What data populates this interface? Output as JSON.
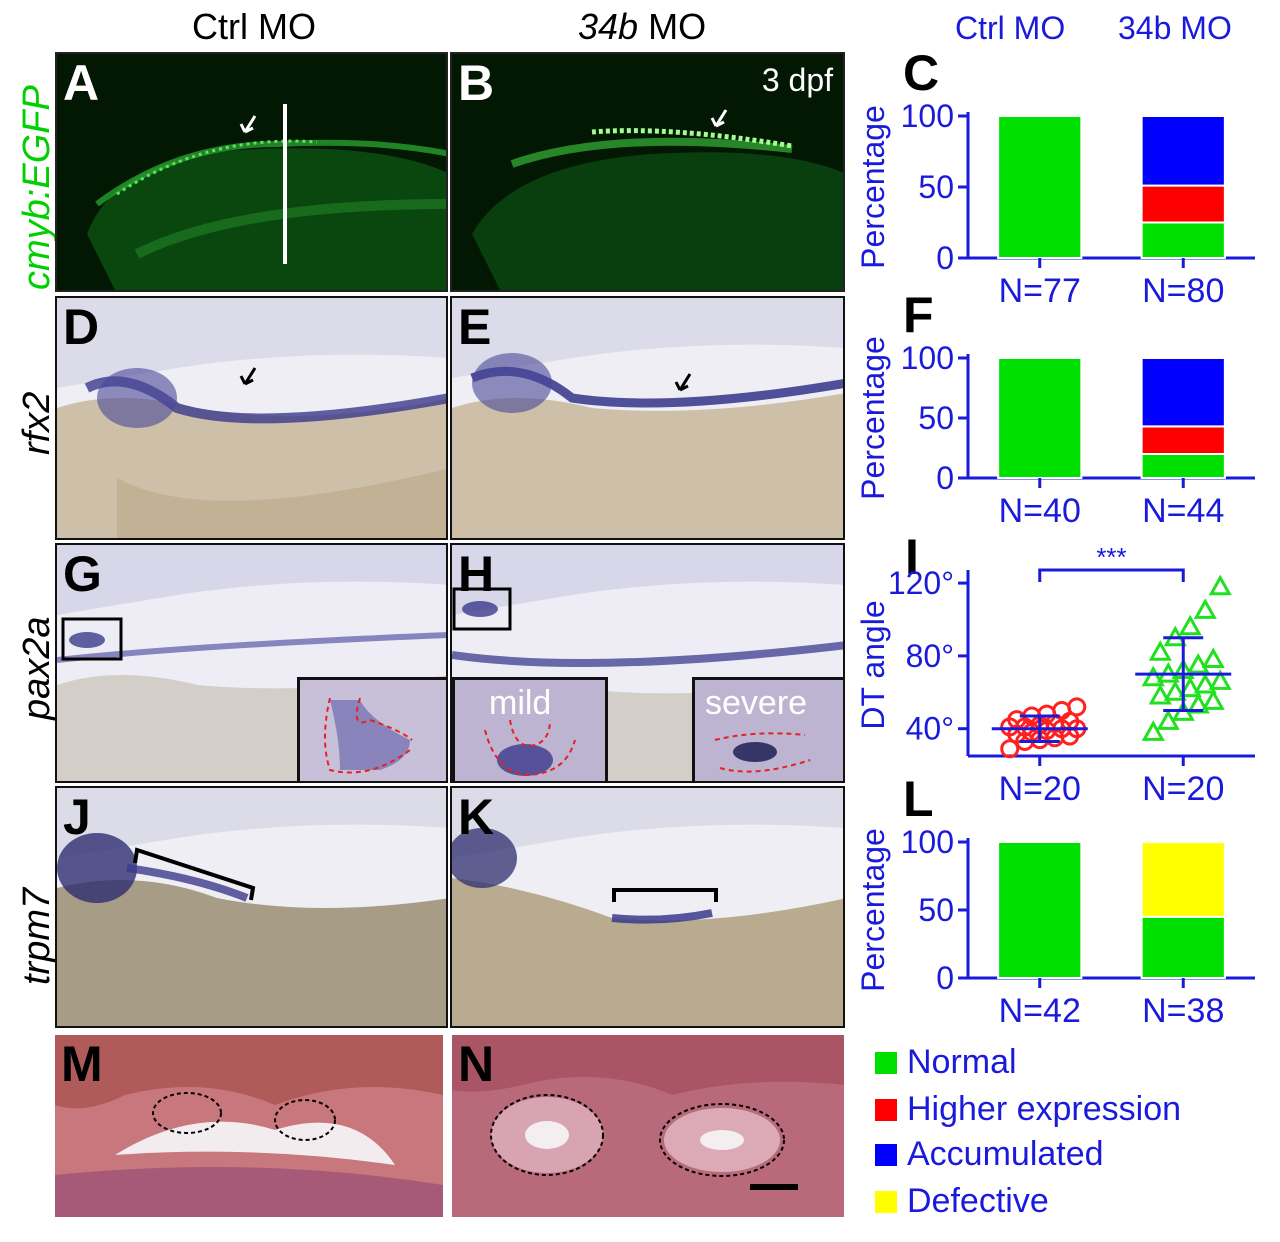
{
  "header": {
    "ctrl": "Ctrl MO",
    "mo_italic": "34b",
    "mo_rest": " MO",
    "chart_ctrl": "Ctrl MO",
    "chart_mo": "34b MO"
  },
  "row_labels": {
    "a": "cmyb:EGFP",
    "d": "rfx2",
    "g": "pax2a",
    "j": "trpm7"
  },
  "panel_labels": {
    "A": "A",
    "B": "B",
    "C": "C",
    "D": "D",
    "E": "E",
    "F": "F",
    "G": "G",
    "H": "H",
    "I": "I",
    "J": "J",
    "K": "K",
    "L": "L",
    "M": "M",
    "N": "N"
  },
  "annotations": {
    "dpf": "3 dpf",
    "mild": "mild",
    "severe": "severe",
    "significance": "***"
  },
  "legend": [
    {
      "label": "Normal",
      "color": "#00e000"
    },
    {
      "label": "Higher expression",
      "color": "#ff0000"
    },
    {
      "label": "Accumulated",
      "color": "#0000ff"
    },
    {
      "label": "Defective",
      "color": "#ffff00"
    }
  ],
  "chart_data": [
    {
      "panel": "C",
      "type": "bar",
      "stacked": true,
      "ylabel": "Percentage",
      "ylim": [
        0,
        100
      ],
      "yticks": [
        "0",
        "50",
        "100"
      ],
      "categories": [
        "N=77",
        "N=80"
      ],
      "series": [
        {
          "name": "Normal",
          "values": [
            100,
            25
          ],
          "color": "#00e000"
        },
        {
          "name": "Higher expression",
          "values": [
            0,
            26
          ],
          "color": "#ff0000"
        },
        {
          "name": "Accumulated",
          "values": [
            0,
            49
          ],
          "color": "#0000ff"
        }
      ]
    },
    {
      "panel": "F",
      "type": "bar",
      "stacked": true,
      "ylabel": "Percentage",
      "ylim": [
        0,
        100
      ],
      "yticks": [
        "0",
        "50",
        "100"
      ],
      "categories": [
        "N=40",
        "N=44"
      ],
      "series": [
        {
          "name": "Normal",
          "values": [
            100,
            20
          ],
          "color": "#00e000"
        },
        {
          "name": "Higher expression",
          "values": [
            0,
            23
          ],
          "color": "#ff0000"
        },
        {
          "name": "Accumulated",
          "values": [
            0,
            57
          ],
          "color": "#0000ff"
        }
      ]
    },
    {
      "panel": "I",
      "type": "scatter",
      "ylabel": "DT angle",
      "ylim": [
        25,
        125
      ],
      "yticks": [
        "40°",
        "80°",
        "120°"
      ],
      "categories": [
        "N=20",
        "N=20"
      ],
      "groups": [
        {
          "group": "Ctrl MO",
          "marker": "circle",
          "color": "#ff2020",
          "mean": 40,
          "sd": 7,
          "values": [
            29,
            33,
            34,
            35,
            36,
            37,
            38,
            39,
            40,
            40,
            41,
            41,
            42,
            43,
            44,
            45,
            47,
            48,
            50,
            52
          ]
        },
        {
          "group": "34b MO",
          "marker": "triangle",
          "color": "#20e020",
          "mean": 70,
          "sd": 20,
          "values": [
            38,
            44,
            49,
            53,
            55,
            58,
            60,
            62,
            64,
            66,
            68,
            70,
            72,
            75,
            78,
            82,
            90,
            96,
            105,
            118
          ]
        }
      ]
    },
    {
      "panel": "L",
      "type": "bar",
      "stacked": true,
      "ylabel": "Percentage",
      "ylim": [
        0,
        100
      ],
      "yticks": [
        "0",
        "50",
        "100"
      ],
      "categories": [
        "N=42",
        "N=38"
      ],
      "series": [
        {
          "name": "Normal",
          "values": [
            100,
            45
          ],
          "color": "#00e000"
        },
        {
          "name": "Defective",
          "values": [
            0,
            55
          ],
          "color": "#ffff00"
        }
      ]
    }
  ]
}
